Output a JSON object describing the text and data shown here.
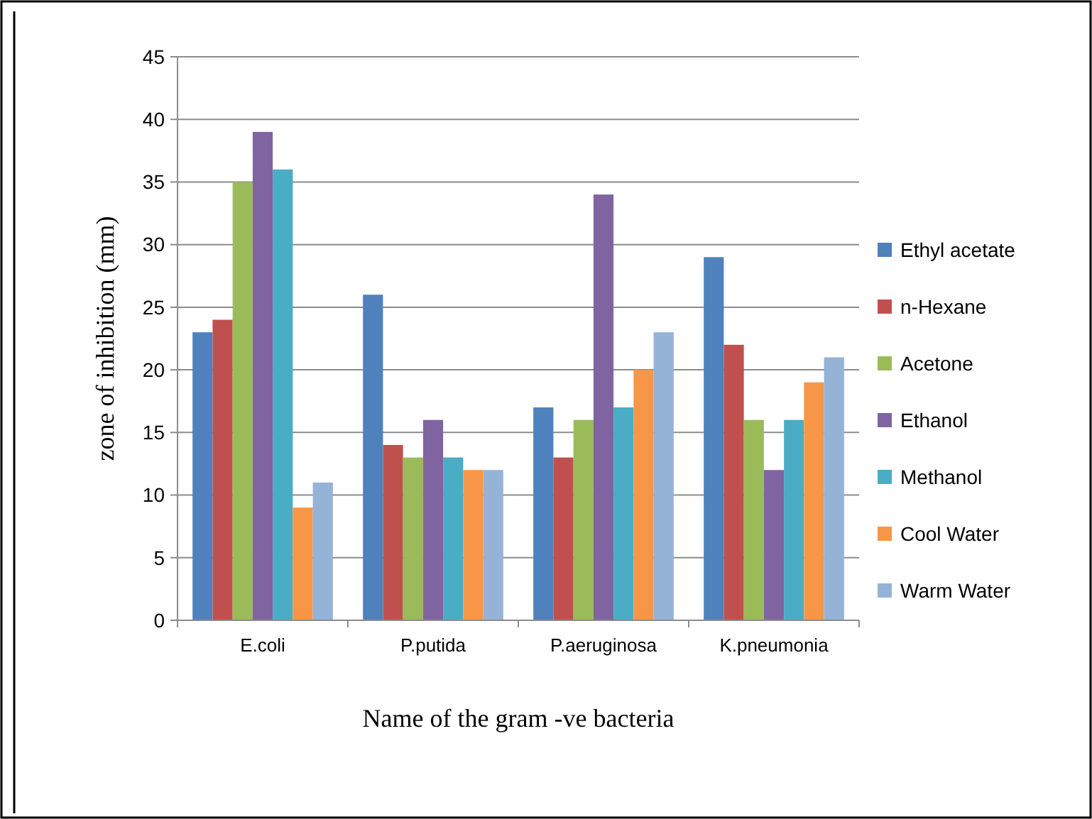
{
  "chart_data": {
    "type": "bar",
    "xlabel": "Name of the gram -ve bacteria",
    "ylabel": "zone of inhibition (mm)",
    "categories": [
      "E.coli",
      "P.putida",
      "P.aeruginosa",
      "K.pneumonia"
    ],
    "series": [
      {
        "name": "Ethyl acetate",
        "color": "#4f81bd",
        "values": [
          23,
          26,
          17,
          29
        ]
      },
      {
        "name": "n-Hexane",
        "color": "#c0504d",
        "values": [
          24,
          14,
          13,
          22
        ]
      },
      {
        "name": "Acetone",
        "color": "#9bbb59",
        "values": [
          35,
          13,
          16,
          16
        ]
      },
      {
        "name": "Ethanol",
        "color": "#8064a2",
        "values": [
          39,
          16,
          34,
          12
        ]
      },
      {
        "name": "Methanol",
        "color": "#4bacc6",
        "values": [
          36,
          13,
          17,
          16
        ]
      },
      {
        "name": "Cool Water",
        "color": "#f79646",
        "values": [
          9,
          12,
          20,
          19
        ]
      },
      {
        "name": "Warm Water",
        "color": "#95b3d7",
        "values": [
          11,
          12,
          23,
          21
        ]
      }
    ],
    "ylim": [
      0,
      45
    ],
    "yticks": [
      0,
      5,
      10,
      15,
      20,
      25,
      30,
      35,
      40,
      45
    ],
    "grid": "y",
    "legend": "right"
  }
}
